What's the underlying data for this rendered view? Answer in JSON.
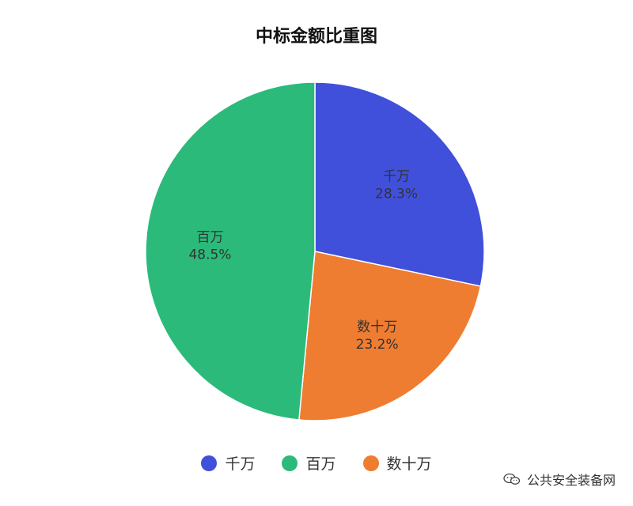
{
  "chart_data": {
    "type": "pie",
    "title": "中标金额比重图",
    "start_angle_deg": 0,
    "direction": "clockwise",
    "legend_position": "bottom",
    "slices": [
      {
        "name": "千万",
        "value": 28.3,
        "label": "28.3%",
        "color": "#4050DB"
      },
      {
        "name": "数十万",
        "value": 23.2,
        "label": "23.2%",
        "color": "#EE7D31"
      },
      {
        "name": "百万",
        "value": 48.5,
        "label": "48.5%",
        "color": "#2BBA7A"
      }
    ],
    "legend": [
      {
        "name": "千万",
        "color": "#4050DB"
      },
      {
        "name": "百万",
        "color": "#2BBA7A"
      },
      {
        "name": "数十万",
        "color": "#EE7D31"
      }
    ]
  },
  "watermark": {
    "text": "公共安全装备网",
    "icon": "wechat-icon"
  }
}
